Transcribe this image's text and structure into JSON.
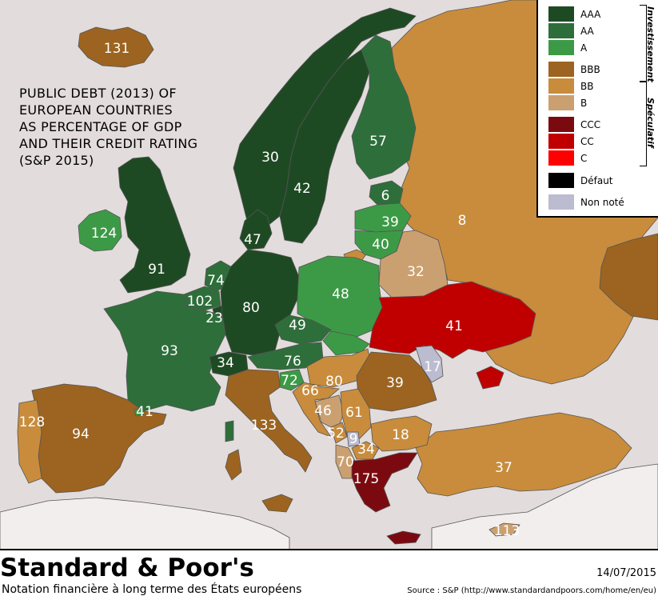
{
  "map": {
    "title_lines": [
      "PUBLIC DEBT (2013) OF",
      "EUROPEAN COUNTRIES",
      "AS PERCENTAGE OF GDP",
      "AND THEIR CREDIT RATING",
      "(S&P 2015)"
    ],
    "colors": {
      "sea": "#e2dcdc",
      "land_other": "#f2eeee",
      "AAA": "#1e4a23",
      "AA": "#2e6e3a",
      "A": "#3c9a46",
      "BBB": "#9c6420",
      "BB": "#c88c3c",
      "B": "#cba070",
      "CCC": "#7b0a10",
      "CC": "#c00000",
      "C": "#ff0000",
      "default": "#000000",
      "unrated": "#bcbcd0"
    },
    "countries": [
      {
        "name": "Iceland",
        "debt": "131",
        "rating": "BBB"
      },
      {
        "name": "Ireland",
        "debt": "124",
        "rating": "A"
      },
      {
        "name": "United Kingdom",
        "debt": "91",
        "rating": "AAA"
      },
      {
        "name": "Norway",
        "debt": "30",
        "rating": "AAA"
      },
      {
        "name": "Sweden",
        "debt": "42",
        "rating": "AAA"
      },
      {
        "name": "Finland",
        "debt": "57",
        "rating": "AA"
      },
      {
        "name": "Estonia",
        "debt": "6",
        "rating": "AA"
      },
      {
        "name": "Latvia",
        "debt": "39",
        "rating": "A"
      },
      {
        "name": "Lithuania",
        "debt": "40",
        "rating": "A"
      },
      {
        "name": "Russia",
        "debt": "8",
        "rating": "BB"
      },
      {
        "name": "Belarus",
        "debt": "32",
        "rating": "B"
      },
      {
        "name": "Denmark",
        "debt": "47",
        "rating": "AAA"
      },
      {
        "name": "Netherlands",
        "debt": "74",
        "rating": "AA"
      },
      {
        "name": "Belgium",
        "debt": "102",
        "rating": "AA"
      },
      {
        "name": "Luxembourg",
        "debt": "23",
        "rating": "AAA"
      },
      {
        "name": "Germany",
        "debt": "80",
        "rating": "AAA"
      },
      {
        "name": "Poland",
        "debt": "48",
        "rating": "A"
      },
      {
        "name": "Ukraine",
        "debt": "41",
        "rating": "CC"
      },
      {
        "name": "France",
        "debt": "93",
        "rating": "AA"
      },
      {
        "name": "Czech Republic",
        "debt": "49",
        "rating": "AA"
      },
      {
        "name": "Switzerland",
        "debt": "34",
        "rating": "AAA"
      },
      {
        "name": "Austria",
        "debt": "76",
        "rating": "AA"
      },
      {
        "name": "Slovenia",
        "debt": "72",
        "rating": "A"
      },
      {
        "name": "Hungary",
        "debt": "80",
        "rating": "BB"
      },
      {
        "name": "Romania",
        "debt": "39",
        "rating": "BBB"
      },
      {
        "name": "Moldova",
        "debt": "17",
        "rating": "unrated"
      },
      {
        "name": "Croatia",
        "debt": "66",
        "rating": "BB"
      },
      {
        "name": "Bosnia and Herzegovina",
        "debt": "46",
        "rating": "B"
      },
      {
        "name": "Serbia",
        "debt": "61",
        "rating": "BB"
      },
      {
        "name": "Montenegro",
        "debt": "52",
        "rating": "BB"
      },
      {
        "name": "Kosovo",
        "debt": "9",
        "rating": "unrated"
      },
      {
        "name": "North Macedonia",
        "debt": "34",
        "rating": "BB"
      },
      {
        "name": "Albania",
        "debt": "70",
        "rating": "B"
      },
      {
        "name": "Bulgaria",
        "debt": "18",
        "rating": "BB"
      },
      {
        "name": "Greece",
        "debt": "175",
        "rating": "CCC"
      },
      {
        "name": "Turkey",
        "debt": "37",
        "rating": "BB"
      },
      {
        "name": "Cyprus",
        "debt": "113",
        "rating": "B"
      },
      {
        "name": "Italy",
        "debt": "133",
        "rating": "BBB"
      },
      {
        "name": "Spain",
        "debt": "94",
        "rating": "BBB"
      },
      {
        "name": "Portugal",
        "debt": "128",
        "rating": "BB"
      },
      {
        "name": "Andorra",
        "debt": "41",
        "rating": "A"
      }
    ]
  },
  "legend": {
    "items": [
      {
        "label": "AAA",
        "color": "#1e4a23"
      },
      {
        "label": "AA",
        "color": "#2e6e3a"
      },
      {
        "label": "A",
        "color": "#3c9a46"
      },
      {
        "label": "BBB",
        "color": "#9c6420"
      },
      {
        "label": "BB",
        "color": "#c88c3c"
      },
      {
        "label": "B",
        "color": "#cba070"
      },
      {
        "label": "CCC",
        "color": "#7b0a10"
      },
      {
        "label": "CC",
        "color": "#c00000"
      },
      {
        "label": "C",
        "color": "#ff0000"
      },
      {
        "label": "Défaut",
        "color": "#000000"
      },
      {
        "label": "Non noté",
        "color": "#bcbcd0"
      }
    ],
    "group_investment": "Investissement",
    "group_speculative": "Spéculatif"
  },
  "footer": {
    "brand": "Standard & Poor's",
    "subtitle": "Notation financière à long terme des États européens",
    "date": "14/07/2015",
    "source": "Source : S&P (http://www.standardandpoors.com/home/en/eu)"
  }
}
